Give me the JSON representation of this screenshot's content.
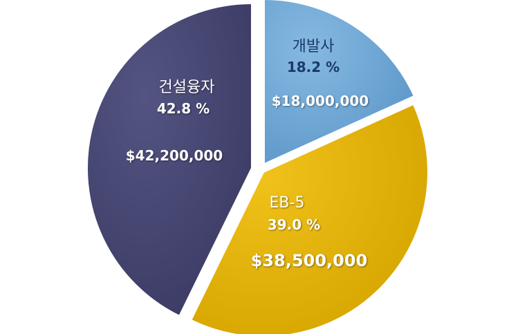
{
  "chart_data": {
    "type": "pie",
    "slices": [
      {
        "name": "개발사",
        "percent_label": "18.2 %",
        "amount_label": "$18,000,000",
        "value": 18000000,
        "color": "#6fa8d6",
        "name_color": "#1a3a6b",
        "pct_color": "#1a3a6b",
        "amount_color": "#ffffff"
      },
      {
        "name": "EB-5",
        "percent_label": "39.0 %",
        "amount_label": "$38,500,000",
        "value": 38500000,
        "color": "#e2b100",
        "name_color": "#ffffff",
        "pct_color": "#ffffff",
        "amount_color": "#ffffff"
      },
      {
        "name": "건설융자",
        "percent_label": "42.8 %",
        "amount_label": "$42,200,000",
        "value": 42200000,
        "color": "#454572",
        "name_color": "#ffffff",
        "pct_color": "#ffffff",
        "amount_color": "#ffffff"
      }
    ]
  }
}
